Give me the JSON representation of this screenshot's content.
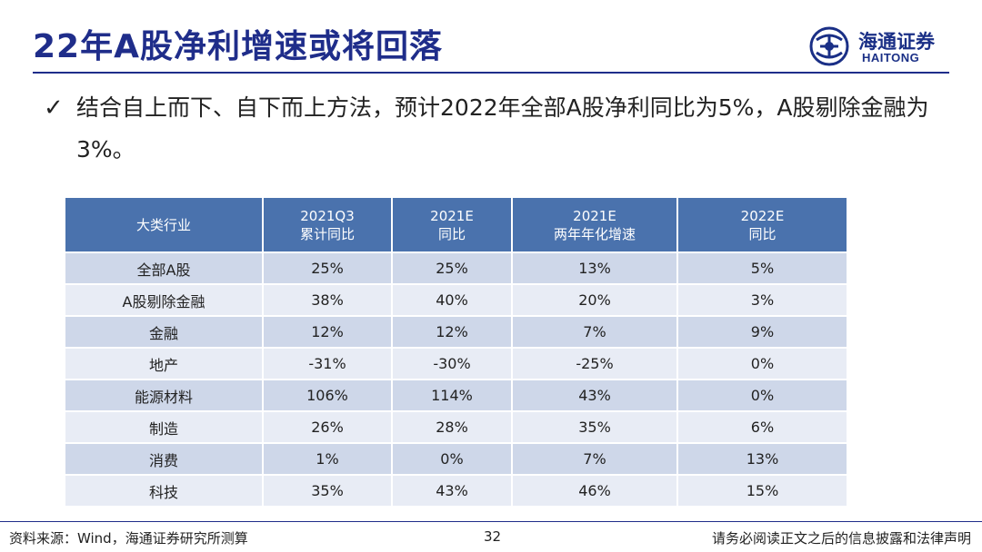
{
  "title": "22年A股净利增速或将回落",
  "logo": {
    "cn": "海通证券",
    "en": "HAITONG"
  },
  "bullet": {
    "mark": "✓",
    "text": "结合自上而下、自下而上方法，预计2022年全部A股净利同比为5%，A股剔除金融为3%。"
  },
  "table": {
    "headers": [
      {
        "line1": "大类行业",
        "line2": ""
      },
      {
        "line1": "2021Q3",
        "line2": "累计同比"
      },
      {
        "line1": "2021E",
        "line2": "同比"
      },
      {
        "line1": "2021E",
        "line2": "两年年化增速"
      },
      {
        "line1": "2022E",
        "line2": "同比"
      }
    ],
    "rows": [
      [
        "全部A股",
        "25%",
        "25%",
        "13%",
        "5%"
      ],
      [
        "A股剔除金融",
        "38%",
        "40%",
        "20%",
        "3%"
      ],
      [
        "金融",
        "12%",
        "12%",
        "7%",
        "9%"
      ],
      [
        "地产",
        "-31%",
        "-30%",
        "-25%",
        "0%"
      ],
      [
        "能源材料",
        "106%",
        "114%",
        "43%",
        "0%"
      ],
      [
        "制造",
        "26%",
        "28%",
        "35%",
        "6%"
      ],
      [
        "消费",
        "1%",
        "0%",
        "7%",
        "13%"
      ],
      [
        "科技",
        "35%",
        "43%",
        "46%",
        "15%"
      ]
    ]
  },
  "footer": {
    "source": "资料来源：Wind，海通证券研究所测算",
    "page": "32",
    "disclaimer": "请务必阅读正文之后的信息披露和法律声明"
  }
}
